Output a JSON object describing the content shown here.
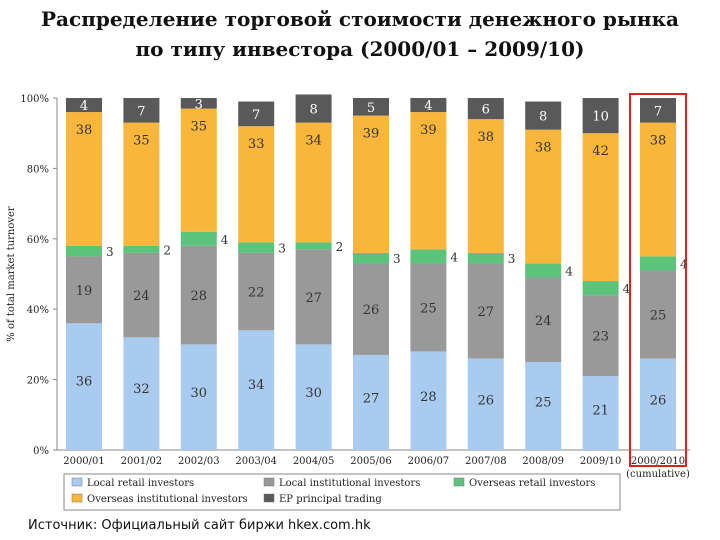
{
  "slide": {
    "title_line1": "Распределение торговой стоимости денежного рынка",
    "title_line2": "по типу инвестора (2000/01 – 2009/10)",
    "source": "Источник: Официальный сайт биржи hkex.com.hk"
  },
  "chart_data": {
    "type": "bar",
    "stacked": true,
    "ylabel": "% of total market turnover",
    "ylim": [
      0,
      100
    ],
    "yticks": [
      "0%",
      "20%",
      "40%",
      "60%",
      "80%",
      "100%"
    ],
    "categories": [
      "2000/01",
      "2001/02",
      "2002/03",
      "2003/04",
      "2004/05",
      "2005/06",
      "2006/07",
      "2007/08",
      "2008/09",
      "2009/10",
      "2000/2010"
    ],
    "category_note": "(cumulative)",
    "highlighted_category": "2000/2010",
    "series": [
      {
        "name": "Local retail investors",
        "color": "#a9cbf0",
        "values": [
          36,
          32,
          30,
          34,
          30,
          27,
          28,
          26,
          25,
          21,
          26
        ]
      },
      {
        "name": "Local institutional investors",
        "color": "#999999",
        "values": [
          19,
          24,
          28,
          22,
          27,
          26,
          25,
          27,
          24,
          23,
          25
        ]
      },
      {
        "name": "Overseas retail investors",
        "color": "#5cc47a",
        "values": [
          3,
          2,
          4,
          3,
          2,
          3,
          4,
          3,
          4,
          4,
          4
        ]
      },
      {
        "name": "Overseas institutional investors",
        "color": "#f8b63a",
        "values": [
          38,
          35,
          35,
          33,
          34,
          39,
          39,
          38,
          38,
          42,
          38
        ]
      },
      {
        "name": "EP principal trading",
        "color": "#595959",
        "values": [
          4,
          7,
          3,
          7,
          8,
          5,
          4,
          6,
          8,
          10,
          7
        ]
      }
    ],
    "legend_order": [
      "Local retail investors",
      "Local institutional investors",
      "Overseas retail investors",
      "Overseas institutional investors",
      "EP principal trading"
    ],
    "legend_position": "bottom"
  }
}
